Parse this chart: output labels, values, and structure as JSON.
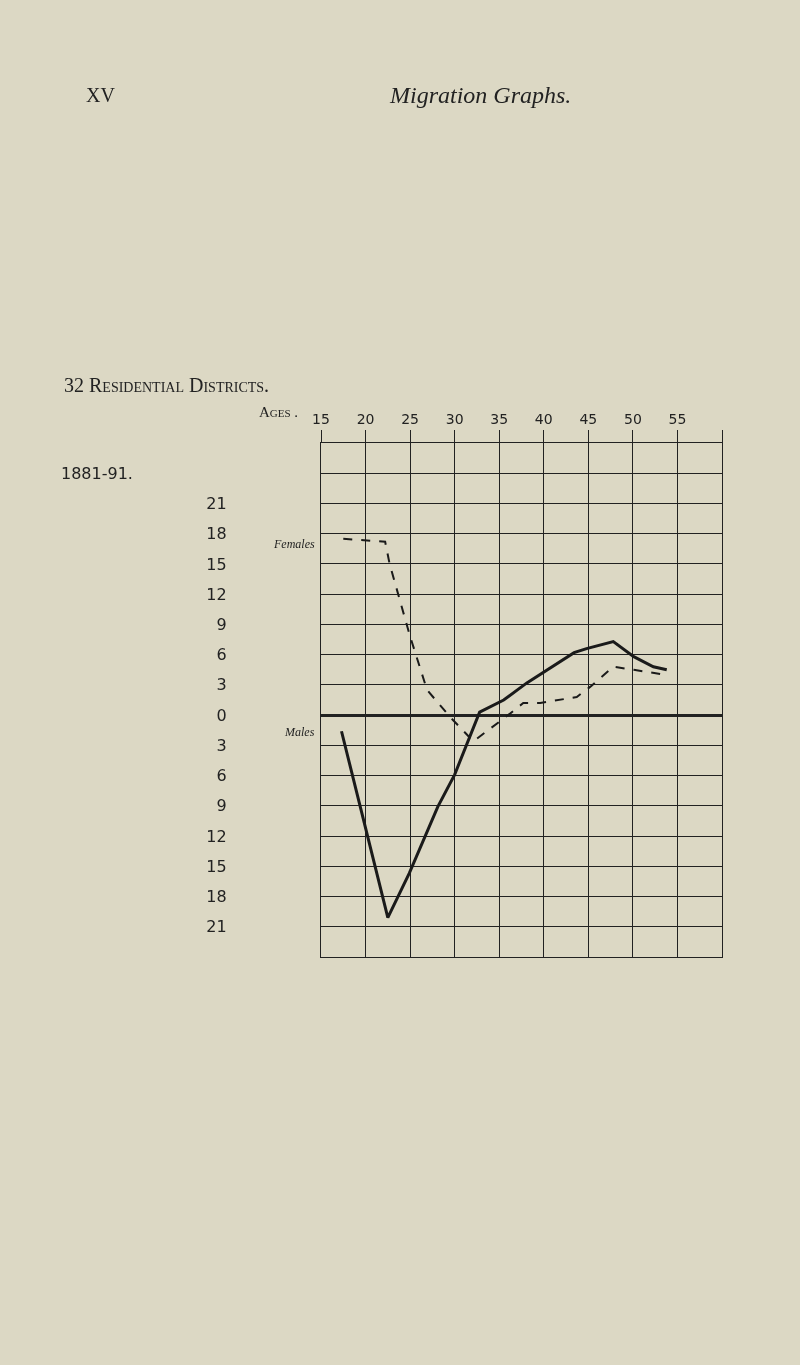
{
  "chart_data": {
    "type": "line",
    "title": "Migration Graphs.",
    "subtitle": "32 Residential Districts.",
    "annotations": [
      "XV"
    ],
    "xlabel": "Ages .",
    "ylabel": "1881-91.",
    "series": [
      {
        "name": "Females",
        "color": "#1a1a1a",
        "line_style": "dashed",
        "x": [
          17.5,
          22.2,
          22.7,
          25,
          26.9,
          29.5,
          32.1,
          36,
          37.7,
          39.6,
          43.7,
          45.2,
          47.8,
          50.1,
          53.6
        ],
        "values": [
          17.5,
          17.2,
          15,
          7.8,
          2.5,
          -0.2,
          -2.6,
          0,
          1.2,
          1.2,
          1.8,
          2.8,
          4.8,
          4.5,
          4
        ]
      },
      {
        "name": "Males",
        "color": "#1a1a1a",
        "line_style": "solid",
        "x": [
          17.3,
          22.5,
          24.9,
          28.1,
          30,
          32.8,
          35.5,
          38.1,
          43.4,
          44.8,
          47.8,
          50.1,
          52.3,
          53.8
        ],
        "values": [
          -1.6,
          -20.1,
          -15.7,
          -9.1,
          -5.9,
          0.3,
          1.5,
          3.2,
          6.2,
          6.6,
          7.3,
          5.8,
          4.8,
          4.5
        ]
      }
    ],
    "xlim": [
      15,
      60
    ],
    "xticks": [
      15,
      20,
      25,
      30,
      35,
      40,
      45,
      50,
      55,
      {
        "value": 60,
        "label": null
      }
    ],
    "ylim": [
      -24,
      27
    ],
    "yticks": [
      {
        "value": 27,
        "label": null
      },
      {
        "value": 24,
        "label": null
      },
      21,
      18,
      15,
      12,
      9,
      6,
      3,
      0,
      {
        "value": -3,
        "label": "3"
      },
      {
        "value": -6,
        "label": "6"
      },
      {
        "value": -9,
        "label": "9"
      },
      {
        "value": -12,
        "label": "12"
      },
      {
        "value": -15,
        "label": "15"
      },
      {
        "value": -18,
        "label": "18"
      },
      {
        "value": -21,
        "label": "21"
      },
      {
        "value": -24,
        "label": null
      }
    ],
    "grid": true,
    "legend": false,
    "marker": "none"
  }
}
